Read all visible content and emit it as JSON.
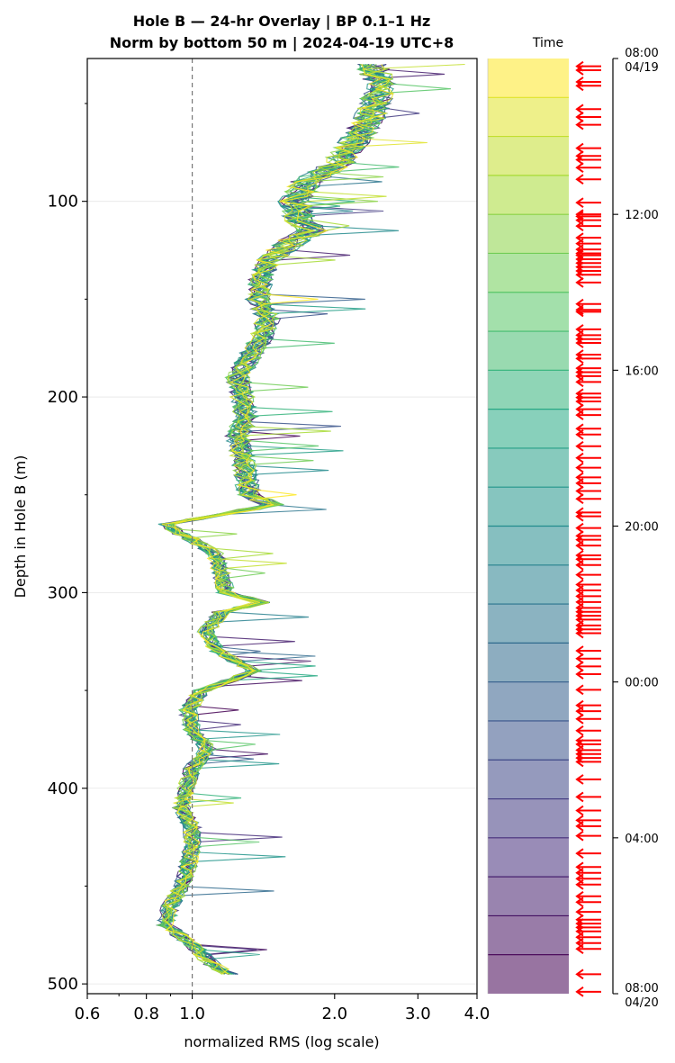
{
  "title": {
    "line1": "Hole B — 24-hr Overlay  |  BP 0.1–1 Hz",
    "line2": "Norm by bottom 50 m  |  2024-04-19 UTC+8"
  },
  "chart_data": {
    "type": "line",
    "xlabel": "normalized RMS  (log scale)",
    "ylabel": "Depth in Hole B (m)",
    "xscale": "log",
    "xlim": [
      0.6,
      4.0
    ],
    "ylim": [
      505,
      27
    ],
    "xticks": [
      0.6,
      0.8,
      1.0,
      2.0,
      3.0,
      4.0
    ],
    "xtick_labels": [
      "0.6",
      "0.8",
      "1.0",
      "2.0",
      "3.0",
      "4.0"
    ],
    "yticks": [
      100,
      200,
      300,
      400,
      500
    ],
    "ytick_labels": [
      "100",
      "200",
      "300",
      "400",
      "500"
    ],
    "grid": "horizontal",
    "reference_line_x": 1.0,
    "series_count": 24,
    "base_profile": {
      "depth": [
        30,
        40,
        50,
        60,
        70,
        80,
        90,
        100,
        110,
        115,
        120,
        130,
        140,
        150,
        160,
        170,
        180,
        190,
        200,
        210,
        220,
        230,
        240,
        250,
        255,
        260,
        265,
        270,
        280,
        290,
        300,
        305,
        310,
        320,
        330,
        340,
        350,
        360,
        370,
        380,
        390,
        400,
        410,
        420,
        430,
        440,
        450,
        460,
        470,
        480,
        490,
        495
      ],
      "rms": [
        2.4,
        2.5,
        2.45,
        2.35,
        2.2,
        2.05,
        1.75,
        1.65,
        1.7,
        1.8,
        1.65,
        1.45,
        1.4,
        1.38,
        1.45,
        1.4,
        1.32,
        1.25,
        1.28,
        1.3,
        1.25,
        1.28,
        1.3,
        1.32,
        1.48,
        1.15,
        0.88,
        0.95,
        1.12,
        1.15,
        1.18,
        1.4,
        1.15,
        1.07,
        1.13,
        1.35,
        1.05,
        0.98,
        1.0,
        1.08,
        1.0,
        0.97,
        0.95,
        1.0,
        1.0,
        0.98,
        0.95,
        0.9,
        0.88,
        1.0,
        1.1,
        1.2
      ]
    },
    "colorbar": {
      "label": "Time",
      "ticks": [
        {
          "t": 0,
          "label": "08:00",
          "sub": "04/19"
        },
        {
          "t": 4,
          "label": "12:00",
          "sub": ""
        },
        {
          "t": 8,
          "label": "16:00",
          "sub": ""
        },
        {
          "t": 12,
          "label": "20:00",
          "sub": ""
        },
        {
          "t": 16,
          "label": "00:00",
          "sub": ""
        },
        {
          "t": 20,
          "label": "04:00",
          "sub": ""
        },
        {
          "t": 24,
          "label": "08:00",
          "sub": "04/20"
        }
      ],
      "levels": 24
    },
    "event_markers": {
      "color": "#ff0000",
      "hours": [
        0.2,
        0.3,
        0.6,
        0.7,
        1.3,
        1.5,
        1.7,
        2.3,
        2.5,
        2.6,
        2.8,
        3.1,
        3.7,
        4.0,
        4.05,
        4.15,
        4.3,
        4.6,
        4.75,
        4.9,
        5.0,
        5.05,
        5.15,
        5.25,
        5.35,
        5.45,
        5.55,
        5.75,
        6.3,
        6.45,
        6.5,
        6.95,
        7.1,
        7.2,
        7.3,
        7.6,
        7.7,
        7.95,
        8.05,
        8.15,
        8.3,
        8.6,
        8.7,
        8.8,
        9.0,
        9.15,
        9.5,
        9.65,
        9.95,
        10.25,
        10.5,
        10.75,
        10.9,
        11.1,
        11.3,
        11.65,
        11.75,
        12.05,
        12.25,
        12.35,
        12.5,
        12.75,
        12.85,
        13.0,
        13.25,
        13.5,
        13.65,
        13.8,
        13.95,
        14.1,
        14.2,
        14.3,
        14.4,
        14.55,
        14.65,
        14.75,
        15.2,
        15.4,
        15.6,
        15.8,
        16.2,
        16.6,
        16.75,
        16.95,
        17.25,
        17.5,
        17.6,
        17.75,
        17.85,
        17.95,
        18.05,
        18.5,
        18.95,
        19.3,
        19.55,
        19.7,
        19.95,
        20.4,
        20.75,
        20.9,
        21.05,
        21.2,
        21.5,
        21.65,
        21.9,
        22.1,
        22.2,
        22.3,
        22.4,
        22.55,
        22.7,
        22.85,
        23.5,
        23.95
      ]
    }
  }
}
